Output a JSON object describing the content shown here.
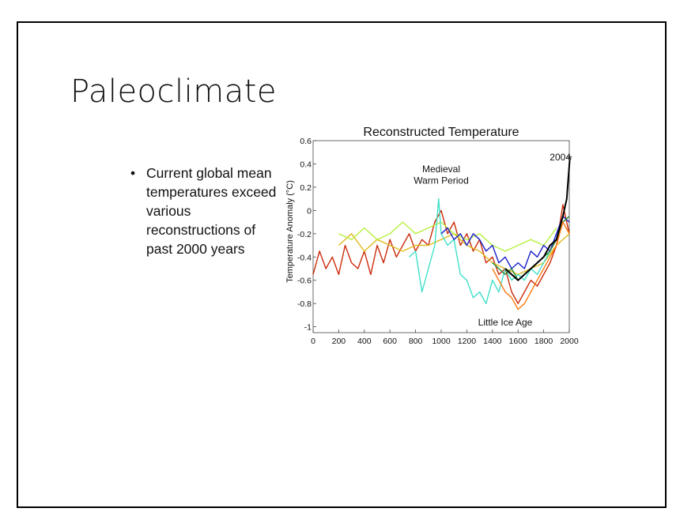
{
  "slide": {
    "title": "Paleoclimate",
    "bullets": [
      "Current global mean temperatures exceed various reconstructions of past 2000 years"
    ]
  },
  "chart_data": {
    "type": "line",
    "title": "Reconstructed Temperature",
    "xlabel": "",
    "ylabel": "Temperature Anomaly (°C)",
    "xlim": [
      0,
      2000
    ],
    "ylim": [
      -1.05,
      0.6
    ],
    "xticks": [
      0,
      200,
      400,
      600,
      800,
      1000,
      1200,
      1400,
      1600,
      1800,
      2000
    ],
    "yticks": [
      0.6,
      0.4,
      0.2,
      0,
      -0.2,
      -0.4,
      -0.6,
      -0.8,
      -1
    ],
    "grid": false,
    "annotations": [
      {
        "text": "Medieval",
        "x": 1000,
        "y": 0.33
      },
      {
        "text": "Warm Period",
        "x": 1000,
        "y": 0.23
      },
      {
        "text": "Little Ice Age",
        "x": 1500,
        "y": -0.99
      },
      {
        "text": "2004",
        "x": 1930,
        "y": 0.43
      }
    ],
    "marker": {
      "x": 2004,
      "y": 0.44,
      "symbol": "*"
    },
    "series": [
      {
        "color": "#cc2a0a",
        "x": [
          0,
          50,
          100,
          150,
          200,
          250,
          300,
          350,
          400,
          450,
          500,
          550,
          600,
          650,
          700,
          750,
          800,
          850,
          900,
          950,
          1000,
          1050,
          1100,
          1150,
          1200,
          1250,
          1300,
          1350,
          1400,
          1450,
          1500,
          1550,
          1600,
          1650,
          1700,
          1750,
          1800,
          1850,
          1900,
          1950,
          2000
        ],
        "y": [
          -0.55,
          -0.35,
          -0.5,
          -0.4,
          -0.55,
          -0.3,
          -0.45,
          -0.5,
          -0.35,
          -0.55,
          -0.3,
          -0.45,
          -0.25,
          -0.4,
          -0.3,
          -0.2,
          -0.35,
          -0.25,
          -0.3,
          -0.1,
          0.0,
          -0.2,
          -0.1,
          -0.3,
          -0.2,
          -0.35,
          -0.25,
          -0.45,
          -0.4,
          -0.55,
          -0.5,
          -0.7,
          -0.8,
          -0.7,
          -0.6,
          -0.65,
          -0.55,
          -0.45,
          -0.3,
          0.05,
          -0.2
        ]
      },
      {
        "color": "#e0bb20",
        "x": [
          200,
          300,
          400,
          500,
          600,
          700,
          800,
          900,
          1000,
          1100,
          1200,
          1300,
          1400,
          1500,
          1600,
          1700,
          1800,
          1900,
          2000
        ],
        "y": [
          -0.3,
          -0.2,
          -0.35,
          -0.25,
          -0.3,
          -0.35,
          -0.3,
          -0.3,
          -0.25,
          -0.2,
          -0.3,
          -0.35,
          -0.45,
          -0.5,
          -0.55,
          -0.5,
          -0.45,
          -0.3,
          -0.2
        ]
      },
      {
        "color": "#b8f040",
        "x": [
          200,
          300,
          400,
          500,
          600,
          700,
          800,
          900,
          1000,
          1100,
          1200,
          1300,
          1400,
          1500,
          1600,
          1700,
          1800,
          1900
        ],
        "y": [
          -0.2,
          -0.25,
          -0.15,
          -0.25,
          -0.2,
          -0.1,
          -0.2,
          -0.15,
          -0.1,
          -0.2,
          -0.25,
          -0.2,
          -0.3,
          -0.35,
          -0.3,
          -0.25,
          -0.3,
          -0.15
        ]
      },
      {
        "color": "#40e0c8",
        "x": [
          750,
          800,
          850,
          900,
          950,
          980,
          1000,
          1050,
          1100,
          1150,
          1200,
          1250,
          1300,
          1350,
          1400,
          1450,
          1500,
          1550,
          1600,
          1650,
          1700,
          1750,
          1800,
          1850,
          1900
        ],
        "y": [
          -0.4,
          -0.35,
          -0.7,
          -0.5,
          -0.3,
          0.1,
          -0.2,
          -0.3,
          -0.25,
          -0.55,
          -0.6,
          -0.75,
          -0.7,
          -0.8,
          -0.6,
          -0.7,
          -0.5,
          -0.6,
          -0.55,
          -0.6,
          -0.5,
          -0.55,
          -0.45,
          -0.35,
          -0.2
        ]
      },
      {
        "color": "#1a20c8",
        "x": [
          1000,
          1050,
          1100,
          1150,
          1200,
          1250,
          1300,
          1350,
          1400,
          1450,
          1500,
          1550,
          1600,
          1650,
          1700,
          1750,
          1800,
          1850,
          1900,
          1950,
          2000
        ],
        "y": [
          -0.2,
          -0.15,
          -0.25,
          -0.2,
          -0.3,
          -0.2,
          -0.25,
          -0.35,
          -0.3,
          -0.45,
          -0.4,
          -0.5,
          -0.45,
          -0.5,
          -0.35,
          -0.4,
          -0.3,
          -0.35,
          -0.2,
          -0.05,
          -0.1
        ]
      },
      {
        "color": "#2a8a3a",
        "x": [
          1400,
          1450,
          1500,
          1550,
          1600,
          1650,
          1700,
          1750,
          1800,
          1850,
          1900,
          1950,
          2000
        ],
        "y": [
          -0.45,
          -0.5,
          -0.55,
          -0.5,
          -0.6,
          -0.55,
          -0.5,
          -0.45,
          -0.4,
          -0.35,
          -0.25,
          -0.1,
          -0.05
        ]
      },
      {
        "color": "#ff7a10",
        "x": [
          1400,
          1450,
          1500,
          1550,
          1600,
          1650,
          1700,
          1750,
          1800,
          1850,
          1900,
          1950,
          2000
        ],
        "y": [
          -0.5,
          -0.6,
          -0.7,
          -0.75,
          -0.85,
          -0.8,
          -0.7,
          -0.6,
          -0.5,
          -0.4,
          -0.3,
          -0.1,
          -0.2
        ]
      },
      {
        "color": "#000000",
        "x": [
          1500,
          1550,
          1600,
          1650,
          1700,
          1750,
          1800,
          1850,
          1900,
          1950,
          1980,
          2004
        ],
        "y": [
          -0.5,
          -0.55,
          -0.6,
          -0.55,
          -0.5,
          -0.45,
          -0.4,
          -0.3,
          -0.25,
          -0.05,
          0.1,
          0.44
        ]
      }
    ]
  }
}
